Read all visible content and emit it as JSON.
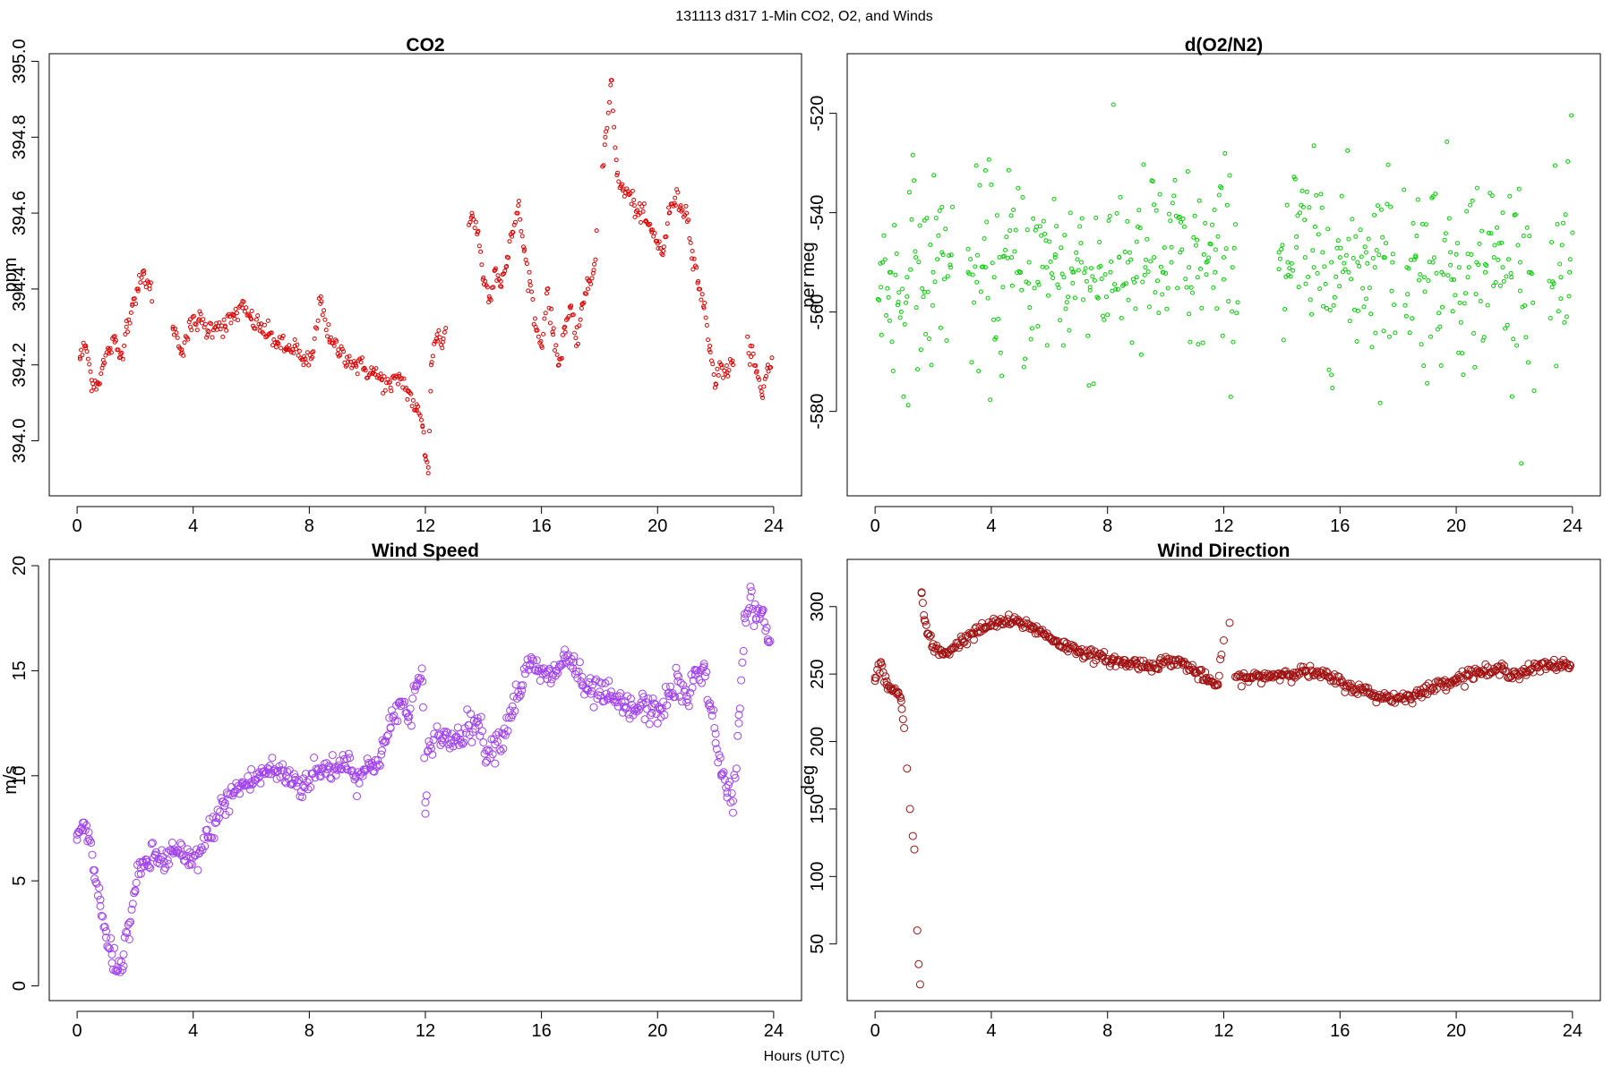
{
  "figure": {
    "title": "131113   d317   1-Min CO2, O2, and Winds",
    "xlabel": "Hours (UTC)"
  },
  "chart_data": [
    {
      "type": "scatter",
      "title": "CO2",
      "ylabel": "ppm",
      "xlim": [
        -0.96,
        24.96
      ],
      "ylim": [
        393.855,
        395.02
      ],
      "xticks": [
        "0",
        "4",
        "8",
        "12",
        "16",
        "20",
        "24"
      ],
      "yticks": [
        "394.0",
        "394.2",
        "394.4",
        "394.6",
        "394.8",
        "395.0"
      ],
      "color": "#e00000",
      "marker_radius": 2,
      "series": [
        {
          "name": "CO2",
          "x": [
            0.1,
            0.3,
            0.5,
            0.7,
            0.9,
            1.1,
            1.3,
            1.5,
            1.7,
            1.9,
            2.1,
            2.3,
            2.5,
            3.3,
            3.6,
            3.9,
            4.2,
            4.5,
            4.8,
            5.1,
            5.4,
            5.7,
            6.0,
            6.3,
            6.6,
            6.9,
            7.2,
            7.5,
            7.8,
            8.1,
            8.4,
            8.7,
            9.0,
            9.3,
            9.6,
            9.9,
            10.2,
            10.5,
            10.8,
            11.1,
            11.4,
            11.7,
            11.9,
            12.0,
            12.1,
            12.2,
            12.4,
            12.6,
            13.6,
            13.8,
            14.0,
            14.2,
            14.4,
            14.6,
            14.8,
            15.0,
            15.2,
            15.4,
            15.6,
            15.8,
            16.0,
            16.2,
            16.4,
            16.6,
            16.8,
            17.0,
            17.2,
            17.4,
            17.6,
            17.8,
            18.2,
            18.4,
            18.6,
            18.8,
            19.0,
            19.2,
            19.4,
            19.6,
            19.8,
            20.0,
            20.2,
            20.4,
            20.6,
            20.8,
            21.0,
            21.2,
            21.4,
            21.6,
            21.8,
            22.0,
            22.2,
            22.4,
            22.6,
            23.2,
            23.4,
            23.6,
            23.8
          ],
          "y": [
            394.22,
            394.25,
            394.16,
            394.15,
            394.2,
            394.24,
            394.26,
            394.22,
            394.3,
            394.36,
            394.4,
            394.44,
            394.4,
            394.3,
            394.24,
            394.3,
            394.32,
            394.29,
            394.31,
            394.3,
            394.33,
            394.35,
            394.32,
            394.3,
            394.28,
            394.26,
            394.24,
            394.25,
            394.2,
            394.22,
            394.38,
            394.26,
            394.24,
            394.22,
            394.2,
            394.19,
            394.18,
            394.16,
            394.14,
            394.17,
            394.13,
            394.08,
            394.04,
            393.96,
            393.93,
            394.2,
            394.28,
            394.26,
            394.6,
            394.55,
            394.43,
            394.38,
            394.45,
            394.42,
            394.46,
            394.55,
            394.62,
            394.5,
            394.42,
            394.3,
            394.25,
            394.4,
            394.28,
            394.2,
            394.3,
            394.35,
            394.25,
            394.36,
            394.4,
            394.45,
            394.8,
            394.95,
            394.7,
            394.66,
            394.65,
            394.62,
            394.6,
            394.58,
            394.55,
            394.52,
            394.5,
            394.6,
            394.64,
            394.62,
            394.6,
            394.5,
            394.42,
            394.35,
            394.25,
            394.15,
            394.2,
            394.18,
            394.2,
            394.25,
            394.18,
            394.12,
            394.2
          ],
          "dense_ranges": [
            [
              0.1,
              2.6
            ],
            [
              3.3,
              12.7
            ],
            [
              13.5,
              17.9
            ],
            [
              18.1,
              22.6
            ],
            [
              23.1,
              23.95
            ]
          ]
        }
      ]
    },
    {
      "type": "scatter",
      "title": "d(O2/N2)",
      "ylabel": "per meg",
      "xlim": [
        -0.96,
        24.96
      ],
      "ylim": [
        -597,
        -508
      ],
      "xticks": [
        "0",
        "4",
        "8",
        "12",
        "16",
        "20",
        "24"
      ],
      "yticks": [
        "-520",
        "-540",
        "-560",
        "-580"
      ],
      "color": "#00d000",
      "marker_radius": 2,
      "series": [
        {
          "name": "d(O2/N2)",
          "x": [
            0.2,
            0.5,
            0.8,
            1.1,
            1.4,
            1.7,
            2.0,
            2.3,
            2.6,
            3.2,
            3.5,
            3.8,
            4.1,
            4.4,
            4.7,
            5.0,
            5.3,
            5.6,
            5.9,
            6.2,
            6.5,
            6.8,
            7.1,
            7.4,
            7.7,
            8.1,
            8.4,
            8.7,
            9.0,
            9.3,
            9.6,
            9.9,
            10.2,
            10.5,
            10.8,
            11.1,
            11.4,
            11.7,
            12.0,
            12.3,
            13.9,
            14.2,
            14.5,
            14.8,
            15.1,
            15.4,
            15.7,
            16.0,
            16.3,
            16.6,
            16.9,
            17.2,
            17.5,
            17.8,
            18.3,
            18.6,
            18.9,
            19.2,
            19.5,
            19.8,
            20.1,
            20.4,
            20.7,
            21.0,
            21.3,
            21.6,
            21.9,
            22.2,
            22.5,
            23.3,
            23.6,
            23.9
          ],
          "y": [
            -555,
            -552,
            -558,
            -553,
            -549,
            -556,
            -552,
            -548,
            -551,
            -552,
            -554,
            -551,
            -553,
            -555,
            -549,
            -552,
            -550,
            -554,
            -551,
            -549,
            -553,
            -552,
            -550,
            -555,
            -551,
            -552,
            -549,
            -550,
            -553,
            -551,
            -549,
            -552,
            -550,
            -548,
            -551,
            -553,
            -550,
            -552,
            -549,
            -551,
            -548,
            -550,
            -547,
            -549,
            -551,
            -548,
            -550,
            -549,
            -552,
            -550,
            -548,
            -551,
            -549,
            -550,
            -551,
            -549,
            -553,
            -550,
            -552,
            -548,
            -551,
            -553,
            -550,
            -552,
            -549,
            -551,
            -553,
            -550,
            -552,
            -555,
            -553,
            -552
          ],
          "spread_sd": 10,
          "dense_ranges": [
            [
              0.1,
              2.7
            ],
            [
              3.2,
              12.5
            ],
            [
              13.9,
              17.9
            ],
            [
              18.2,
              22.7
            ],
            [
              23.2,
              24.0
            ]
          ]
        }
      ]
    },
    {
      "type": "scatter",
      "title": "Wind Speed",
      "ylabel": "m/s",
      "xlim": [
        -0.96,
        24.96
      ],
      "ylim": [
        -0.7,
        20.3
      ],
      "xticks": [
        "0",
        "4",
        "8",
        "12",
        "16",
        "20",
        "24"
      ],
      "yticks": [
        "0",
        "5",
        "10",
        "15",
        "20"
      ],
      "color": "#a040f0",
      "marker_radius": 4,
      "series": [
        {
          "name": "Wind Speed",
          "x": [
            0.0,
            0.2,
            0.4,
            0.6,
            0.8,
            1.0,
            1.2,
            1.4,
            1.6,
            1.8,
            2.0,
            2.2,
            2.4,
            2.7,
            3.0,
            3.3,
            3.6,
            3.9,
            4.2,
            4.5,
            4.8,
            5.1,
            5.4,
            5.7,
            6.0,
            6.3,
            6.6,
            6.9,
            7.2,
            7.5,
            7.8,
            8.1,
            8.4,
            8.7,
            9.0,
            9.3,
            9.6,
            9.9,
            10.2,
            10.5,
            10.8,
            11.1,
            11.4,
            11.7,
            11.9,
            12.0,
            12.1,
            12.3,
            12.6,
            12.9,
            13.2,
            13.5,
            13.8,
            14.1,
            14.4,
            14.7,
            15.0,
            15.3,
            15.6,
            15.9,
            16.2,
            16.5,
            16.8,
            17.1,
            17.4,
            17.7,
            18.0,
            18.3,
            18.6,
            18.9,
            19.2,
            19.5,
            19.8,
            20.1,
            20.4,
            20.7,
            21.0,
            21.3,
            21.6,
            21.8,
            22.0,
            22.2,
            22.4,
            22.6,
            22.8,
            23.0,
            23.2,
            23.4,
            23.6,
            23.8
          ],
          "y": [
            7.2,
            7.4,
            7.0,
            5.5,
            3.8,
            2.3,
            1.5,
            0.8,
            1.5,
            3.0,
            4.5,
            5.6,
            5.9,
            6.2,
            5.9,
            6.4,
            6.2,
            5.8,
            6.3,
            7.1,
            8.0,
            8.7,
            9.2,
            9.6,
            9.7,
            10.0,
            10.3,
            10.2,
            10.0,
            9.8,
            9.5,
            10.1,
            10.2,
            10.4,
            10.5,
            10.8,
            10.0,
            10.2,
            10.5,
            11.2,
            12.3,
            13.5,
            12.8,
            14.3,
            14.5,
            8.2,
            11.2,
            12.0,
            11.8,
            11.7,
            12.0,
            12.4,
            12.6,
            11.2,
            11.5,
            12.0,
            13.3,
            14.3,
            15.3,
            15.0,
            14.6,
            15.0,
            15.6,
            15.4,
            14.3,
            13.9,
            14.0,
            13.7,
            13.5,
            13.2,
            13.1,
            13.4,
            13.0,
            13.2,
            13.8,
            14.5,
            13.5,
            14.8,
            15.2,
            13.3,
            12.0,
            10.0,
            9.2,
            8.8,
            12.5,
            17.5,
            18.5,
            17.5,
            17.8,
            16.5
          ],
          "spread_sd": 0.35,
          "dense_ranges": [
            [
              0.0,
              12.3
            ],
            [
              12.4,
              23.9
            ]
          ]
        }
      ]
    },
    {
      "type": "scatter",
      "title": "Wind Direction",
      "ylabel": "deg",
      "xlim": [
        -0.96,
        24.96
      ],
      "ylim": [
        8,
        335
      ],
      "xticks": [
        "0",
        "4",
        "8",
        "12",
        "16",
        "20",
        "24"
      ],
      "yticks": [
        "50",
        "100",
        "150",
        "200",
        "250",
        "300"
      ],
      "color": "#a01010",
      "marker_radius": 4,
      "series": [
        {
          "name": "Wind Direction",
          "x": [
            0.0,
            0.2,
            0.4,
            0.6,
            0.8,
            0.9,
            1.0,
            1.1,
            1.2,
            1.3,
            1.35,
            1.45,
            1.5,
            1.55,
            1.6,
            1.7,
            1.8,
            2.0,
            2.3,
            2.6,
            3.0,
            3.4,
            3.8,
            4.2,
            4.6,
            5.0,
            5.4,
            5.8,
            6.2,
            6.6,
            7.0,
            7.4,
            7.8,
            8.2,
            8.6,
            9.0,
            9.4,
            9.8,
            10.2,
            10.6,
            11.0,
            11.4,
            11.8,
            12.0,
            12.2,
            12.4,
            12.8,
            13.2,
            13.6,
            14.0,
            14.4,
            14.8,
            15.2,
            15.6,
            16.0,
            16.4,
            16.8,
            17.2,
            17.6,
            18.0,
            18.4,
            18.8,
            19.2,
            19.6,
            20.0,
            20.4,
            20.8,
            21.2,
            21.6,
            22.0,
            22.4,
            22.8,
            23.2,
            23.6,
            23.9
          ],
          "y": [
            245,
            258,
            242,
            238,
            236,
            230,
            210,
            180,
            150,
            130,
            120,
            60,
            35,
            20,
            310,
            290,
            280,
            270,
            265,
            268,
            275,
            280,
            285,
            288,
            289,
            288,
            285,
            280,
            275,
            270,
            268,
            264,
            262,
            260,
            258,
            258,
            256,
            258,
            260,
            258,
            252,
            246,
            242,
            275,
            288,
            248,
            247,
            248,
            249,
            250,
            251,
            252,
            250,
            248,
            244,
            240,
            238,
            234,
            233,
            232,
            234,
            236,
            240,
            244,
            246,
            250,
            252,
            251,
            254,
            250,
            252,
            255,
            256,
            257,
            257
          ],
          "spread_sd": 2.2,
          "dense_ranges": [
            [
              0.0,
              1.0
            ],
            [
              1.6,
              11.95
            ],
            [
              12.45,
              23.95
            ]
          ]
        }
      ]
    }
  ]
}
